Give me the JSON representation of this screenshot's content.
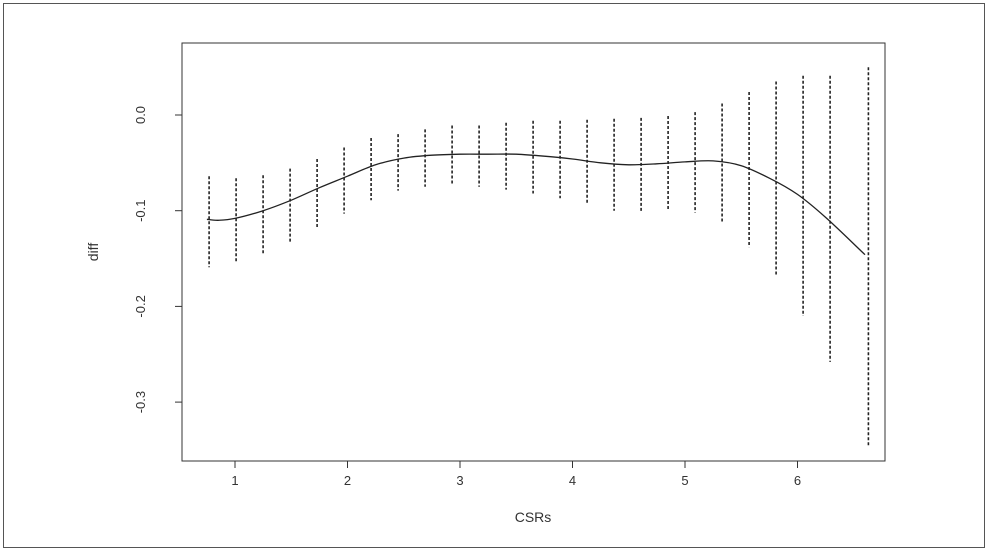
{
  "chart_data": {
    "type": "line",
    "title": "",
    "xlabel": "CSRs",
    "ylabel": "diff",
    "xlim": [
      0.6,
      6.7
    ],
    "ylim": [
      -0.36,
      0.07
    ],
    "x_ticks": [
      1,
      2,
      3,
      4,
      5,
      6
    ],
    "y_ticks": [
      0.0,
      -0.1,
      -0.2,
      -0.3
    ],
    "y_tick_labels": [
      "0.0",
      "-0.1",
      "-0.2",
      "-0.3"
    ],
    "x_tick_labels": [
      "1",
      "2",
      "3",
      "4",
      "5",
      "6"
    ],
    "grid": false,
    "legend": "none",
    "line_color": "#222222",
    "interval_color": "#222222",
    "curve": {
      "x": [
        0.75,
        0.85,
        1.0,
        1.25,
        1.5,
        1.75,
        2.0,
        2.25,
        2.5,
        2.75,
        3.0,
        3.25,
        3.5,
        3.75,
        4.0,
        4.25,
        4.5,
        4.75,
        5.0,
        5.25,
        5.5,
        5.75,
        6.0,
        6.25,
        6.6
      ],
      "y": [
        -0.109,
        -0.11,
        -0.108,
        -0.1,
        -0.089,
        -0.076,
        -0.064,
        -0.052,
        -0.045,
        -0.042,
        -0.041,
        -0.041,
        -0.041,
        -0.043,
        -0.046,
        -0.05,
        -0.052,
        -0.051,
        -0.049,
        -0.048,
        -0.053,
        -0.066,
        -0.083,
        -0.107,
        -0.146
      ]
    },
    "intervals": [
      {
        "x": 0.77,
        "lower": -0.159,
        "upper": -0.064
      },
      {
        "x": 1.01,
        "lower": -0.155,
        "upper": -0.066
      },
      {
        "x": 1.25,
        "lower": -0.146,
        "upper": -0.063
      },
      {
        "x": 1.49,
        "lower": -0.134,
        "upper": -0.056
      },
      {
        "x": 1.73,
        "lower": -0.118,
        "upper": -0.046
      },
      {
        "x": 1.97,
        "lower": -0.103,
        "upper": -0.034
      },
      {
        "x": 2.21,
        "lower": -0.089,
        "upper": -0.024
      },
      {
        "x": 2.45,
        "lower": -0.079,
        "upper": -0.02
      },
      {
        "x": 2.69,
        "lower": -0.075,
        "upper": -0.015
      },
      {
        "x": 2.93,
        "lower": -0.073,
        "upper": -0.011
      },
      {
        "x": 3.17,
        "lower": -0.075,
        "upper": -0.011
      },
      {
        "x": 3.41,
        "lower": -0.078,
        "upper": -0.008
      },
      {
        "x": 3.65,
        "lower": -0.082,
        "upper": -0.006
      },
      {
        "x": 3.89,
        "lower": -0.087,
        "upper": -0.006
      },
      {
        "x": 4.13,
        "lower": -0.093,
        "upper": -0.005
      },
      {
        "x": 4.37,
        "lower": -0.1,
        "upper": -0.004
      },
      {
        "x": 4.61,
        "lower": -0.101,
        "upper": -0.003
      },
      {
        "x": 4.85,
        "lower": -0.1,
        "upper": -0.001
      },
      {
        "x": 5.09,
        "lower": -0.102,
        "upper": 0.003
      },
      {
        "x": 5.33,
        "lower": -0.113,
        "upper": 0.012
      },
      {
        "x": 5.57,
        "lower": -0.138,
        "upper": 0.024
      },
      {
        "x": 5.81,
        "lower": -0.168,
        "upper": 0.035
      },
      {
        "x": 6.05,
        "lower": -0.21,
        "upper": 0.041
      },
      {
        "x": 6.29,
        "lower": -0.258,
        "upper": 0.041
      },
      {
        "x": 6.63,
        "lower": -0.345,
        "upper": 0.05
      }
    ]
  }
}
